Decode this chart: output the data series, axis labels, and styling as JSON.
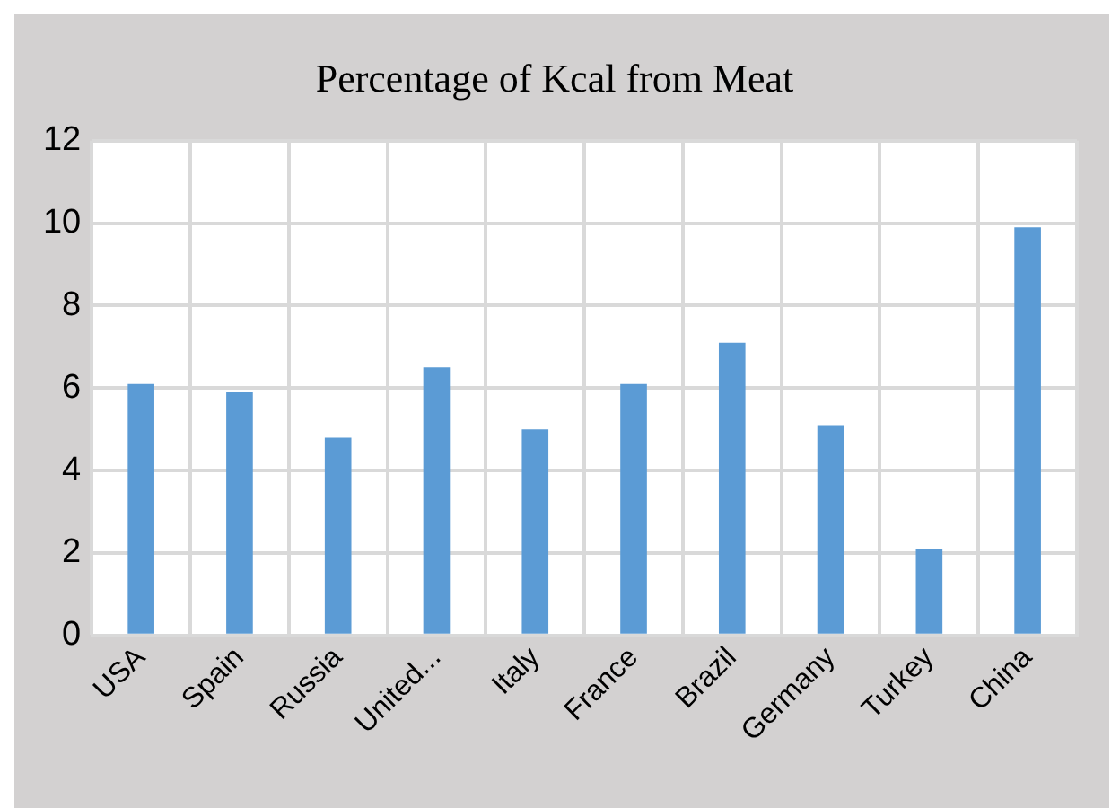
{
  "chart_data": {
    "type": "bar",
    "title": "Percentage of Kcal from Meat",
    "categories": [
      "USA",
      "Spain",
      "Russia",
      "United...",
      "Italy",
      "France",
      "Brazil",
      "Germany",
      "Turkey",
      "China"
    ],
    "values": [
      6.1,
      5.9,
      4.8,
      6.5,
      5.0,
      6.1,
      7.1,
      5.1,
      2.1,
      9.9
    ],
    "color": "#5b9bd5",
    "ylim": [
      0,
      12
    ],
    "yticks": [
      0,
      2,
      4,
      6,
      8,
      10,
      12
    ],
    "grid": true
  }
}
